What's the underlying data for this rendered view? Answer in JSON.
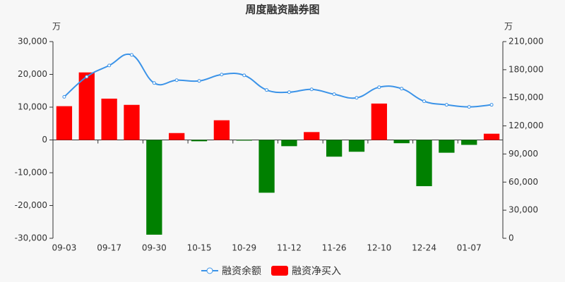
{
  "chart_data": {
    "type": "bar",
    "title": "周度融资融券图",
    "y_unit": "万",
    "y2_unit": "万",
    "categories": [
      "09-03",
      null,
      "09-17",
      null,
      "09-30",
      null,
      "10-15",
      null,
      "10-29",
      null,
      "11-12",
      null,
      "11-26",
      null,
      "12-10",
      null,
      "12-24",
      null,
      "01-07",
      null
    ],
    "series": [
      {
        "name": "融资余额",
        "type": "line",
        "axis": "y2",
        "color": "#3b93e8",
        "values": [
          151000,
          172500,
          184500,
          195800,
          165800,
          168800,
          168000,
          174800,
          174000,
          158300,
          156000,
          159000,
          153800,
          150000,
          161300,
          159800,
          146300,
          142500,
          140300,
          142500
        ]
      },
      {
        "name": "融资净买入",
        "type": "bar",
        "color": "#ff0000",
        "negative_color": "#008000",
        "values": [
          10300,
          20600,
          12600,
          10700,
          -28900,
          2100,
          -400,
          6000,
          -200,
          -16100,
          -1900,
          2400,
          -5100,
          -3600,
          11100,
          -1000,
          -14100,
          -3900,
          -1500,
          1900
        ]
      }
    ],
    "ylim": [
      -30000,
      30000
    ],
    "yticks": [
      {
        "value": -30000,
        "label": "-30,000"
      },
      {
        "value": -20000,
        "label": "-20,000"
      },
      {
        "value": -10000,
        "label": "-10,000"
      },
      0,
      {
        "value": 10000,
        "label": "10,000"
      },
      {
        "value": 20000,
        "label": "20,000"
      },
      {
        "value": 30000,
        "label": "30,000"
      }
    ],
    "y2lim": [
      0,
      210000
    ],
    "y2ticks": [
      0,
      {
        "value": 30000,
        "label": "30,000"
      },
      {
        "value": 60000,
        "label": "60,000"
      },
      {
        "value": 90000,
        "label": "90,000"
      },
      {
        "value": 120000,
        "label": "120,000"
      },
      {
        "value": 150000,
        "label": "150,000"
      },
      {
        "value": 180000,
        "label": "180,000"
      },
      {
        "value": 210000,
        "label": "210,000"
      }
    ]
  }
}
